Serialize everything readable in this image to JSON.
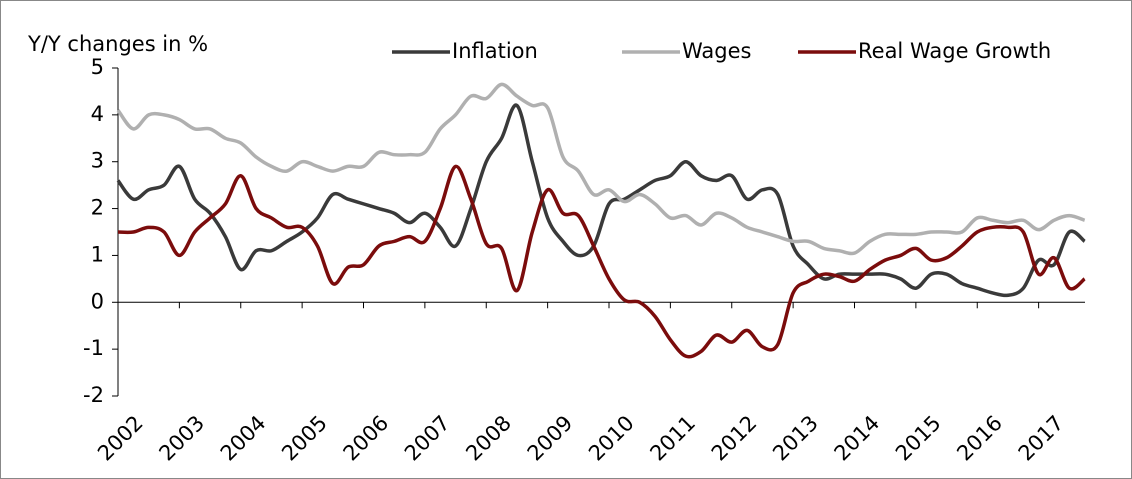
{
  "chart_data": {
    "type": "line",
    "y_label": "Y/Y changes in %",
    "x": [
      2002,
      2002.25,
      2002.5,
      2002.75,
      2003,
      2003.25,
      2003.5,
      2003.75,
      2004,
      2004.25,
      2004.5,
      2004.75,
      2005,
      2005.25,
      2005.5,
      2005.75,
      2006,
      2006.25,
      2006.5,
      2006.75,
      2007,
      2007.25,
      2007.5,
      2007.75,
      2008,
      2008.25,
      2008.5,
      2008.75,
      2009,
      2009.25,
      2009.5,
      2009.75,
      2010,
      2010.25,
      2010.5,
      2010.75,
      2011,
      2011.25,
      2011.5,
      2011.75,
      2012,
      2012.25,
      2012.5,
      2012.75,
      2013,
      2013.25,
      2013.5,
      2013.75,
      2014,
      2014.25,
      2014.5,
      2014.75,
      2015,
      2015.25,
      2015.5,
      2015.75,
      2016,
      2016.25,
      2016.5,
      2016.75,
      2017,
      2017.25,
      2017.5,
      2017.75
    ],
    "series": [
      {
        "name": "Inflation",
        "color": "#3a3a3a",
        "values": [
          2.6,
          2.2,
          2.4,
          2.5,
          2.9,
          2.2,
          1.9,
          1.4,
          0.7,
          1.1,
          1.1,
          1.3,
          1.5,
          1.8,
          2.3,
          2.2,
          2.1,
          2.0,
          1.9,
          1.7,
          1.9,
          1.6,
          1.2,
          2.0,
          3.0,
          3.5,
          4.2,
          3.0,
          1.8,
          1.3,
          1.0,
          1.2,
          2.1,
          2.2,
          2.4,
          2.6,
          2.7,
          3.0,
          2.7,
          2.6,
          2.7,
          2.2,
          2.4,
          2.3,
          1.2,
          0.8,
          0.5,
          0.6,
          0.6,
          0.6,
          0.6,
          0.5,
          0.3,
          0.6,
          0.6,
          0.4,
          0.3,
          0.2,
          0.15,
          0.3,
          0.9,
          0.8,
          1.5,
          1.3
        ]
      },
      {
        "name": "Wages",
        "color": "#b0b0b0",
        "values": [
          4.1,
          3.7,
          4.0,
          4.0,
          3.9,
          3.7,
          3.7,
          3.5,
          3.4,
          3.1,
          2.9,
          2.8,
          3.0,
          2.9,
          2.8,
          2.9,
          2.9,
          3.2,
          3.15,
          3.15,
          3.2,
          3.7,
          4.0,
          4.4,
          4.35,
          4.65,
          4.4,
          4.2,
          4.15,
          3.1,
          2.8,
          2.3,
          2.4,
          2.15,
          2.3,
          2.1,
          1.8,
          1.85,
          1.65,
          1.9,
          1.8,
          1.6,
          1.5,
          1.4,
          1.3,
          1.3,
          1.15,
          1.1,
          1.05,
          1.3,
          1.45,
          1.45,
          1.45,
          1.5,
          1.5,
          1.5,
          1.8,
          1.75,
          1.7,
          1.75,
          1.55,
          1.75,
          1.85,
          1.75
        ]
      },
      {
        "name": "Real Wage Growth",
        "color": "#7b0c0c",
        "values": [
          1.5,
          1.5,
          1.6,
          1.5,
          1.0,
          1.5,
          1.8,
          2.1,
          2.7,
          2.0,
          1.8,
          1.6,
          1.6,
          1.2,
          0.4,
          0.75,
          0.8,
          1.2,
          1.3,
          1.4,
          1.3,
          2.0,
          2.9,
          2.2,
          1.25,
          1.15,
          0.25,
          1.5,
          2.4,
          1.9,
          1.85,
          1.2,
          0.5,
          0.05,
          0,
          -0.3,
          -0.8,
          -1.15,
          -1.05,
          -0.7,
          -0.85,
          -0.6,
          -0.95,
          -0.9,
          0.2,
          0.45,
          0.6,
          0.55,
          0.45,
          0.7,
          0.9,
          1.0,
          1.15,
          0.9,
          0.95,
          1.2,
          1.5,
          1.6,
          1.6,
          1.5,
          0.6,
          0.95,
          0.3,
          0.5
        ]
      }
    ],
    "xlim": [
      2002,
      2018
    ],
    "xticks": [
      2002,
      2003,
      2004,
      2005,
      2006,
      2007,
      2008,
      2009,
      2010,
      2011,
      2012,
      2013,
      2014,
      2015,
      2016,
      2017
    ],
    "ylim": [
      -2,
      5
    ],
    "yticks": [
      -2,
      -1,
      0,
      1,
      2,
      3,
      4,
      5
    ],
    "legend": "top"
  }
}
